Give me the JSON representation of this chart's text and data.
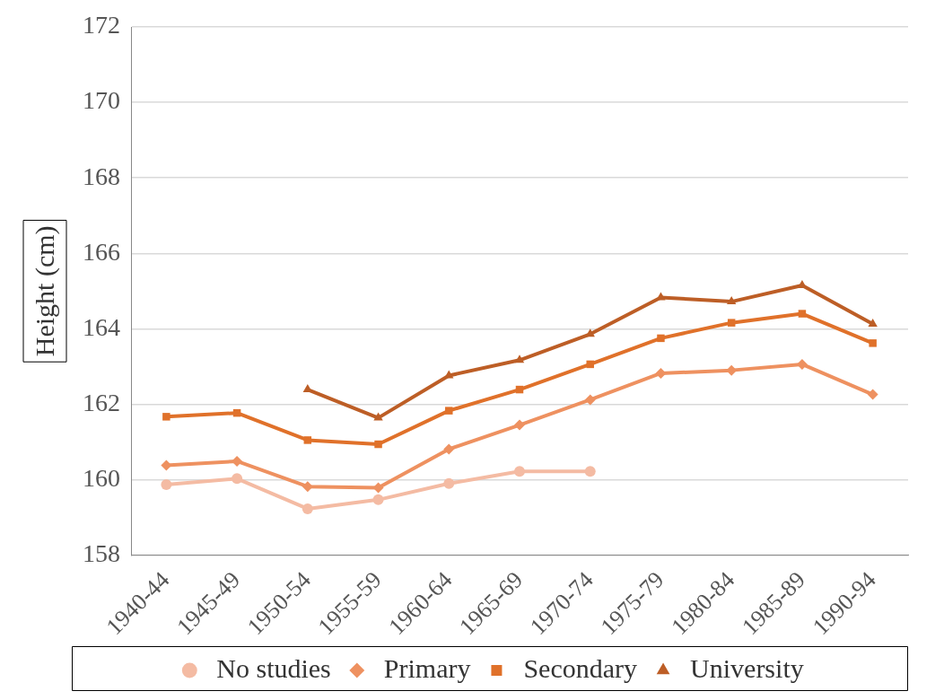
{
  "chart_data": {
    "type": "line",
    "ylabel": "Height (cm)",
    "categories": [
      "1940-44",
      "1945-49",
      "1950-54",
      "1955-59",
      "1960-64",
      "1965-69",
      "1970-74",
      "1975-79",
      "1980-84",
      "1985-89",
      "1990-94"
    ],
    "ylim": [
      158,
      172
    ],
    "yticks": [
      158,
      160,
      162,
      164,
      166,
      168,
      170,
      172
    ],
    "grid": "y",
    "legend": "bottom",
    "series": [
      {
        "name": "No studies",
        "color": "#f4bba3",
        "marker": "circle",
        "values": [
          159.87,
          160.03,
          159.23,
          159.47,
          159.9,
          160.22,
          160.22,
          null,
          null,
          null,
          null
        ]
      },
      {
        "name": "Primary",
        "color": "#ee9160",
        "marker": "diamond",
        "values": [
          160.38,
          160.49,
          159.82,
          159.79,
          160.81,
          161.45,
          162.12,
          162.82,
          162.9,
          163.06,
          162.26
        ]
      },
      {
        "name": "Secondary",
        "color": "#e0712a",
        "marker": "square",
        "values": [
          161.67,
          161.77,
          161.05,
          160.94,
          161.83,
          162.39,
          163.06,
          163.75,
          164.16,
          164.4,
          163.62
        ]
      },
      {
        "name": "University",
        "color": "#bd5e26",
        "marker": "triangle",
        "values": [
          null,
          null,
          162.39,
          161.64,
          162.76,
          163.17,
          163.86,
          164.83,
          164.72,
          165.15,
          164.13
        ]
      }
    ]
  }
}
